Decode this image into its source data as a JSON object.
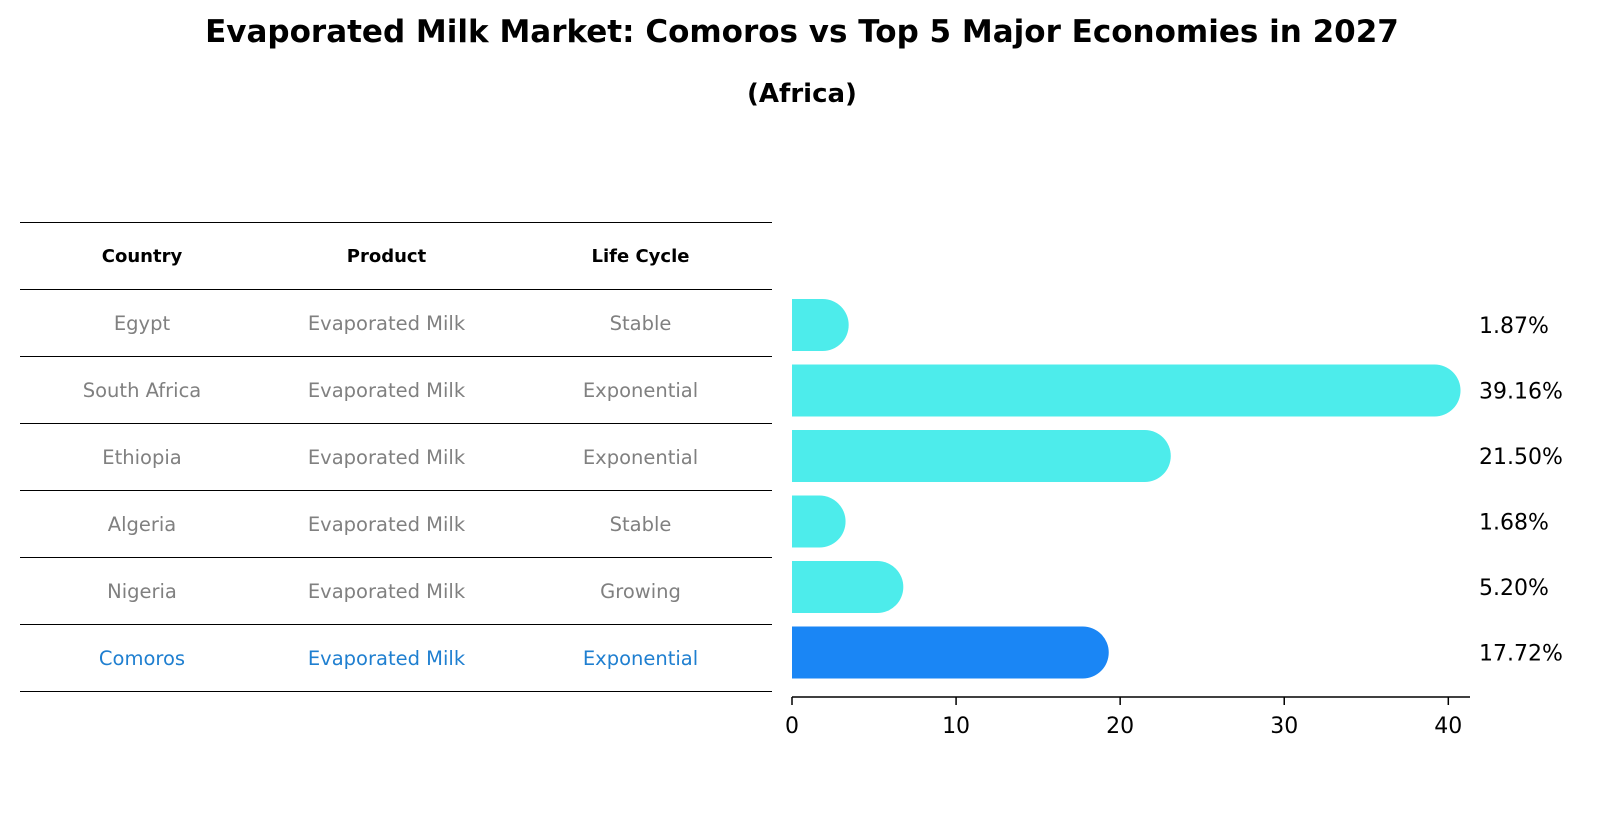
{
  "title": "Evaporated Milk Market: Comoros vs Top 5 Major Economies in 2027",
  "subtitle": "(Africa)",
  "table": {
    "headers": [
      "Country",
      "Product",
      "Life Cycle"
    ],
    "rows": [
      {
        "country": "Egypt",
        "product": "Evaporated Milk",
        "life_cycle": "Stable"
      },
      {
        "country": "South Africa",
        "product": "Evaporated Milk",
        "life_cycle": "Exponential"
      },
      {
        "country": "Ethiopia",
        "product": "Evaporated Milk",
        "life_cycle": "Exponential"
      },
      {
        "country": "Algeria",
        "product": "Evaporated Milk",
        "life_cycle": "Stable"
      },
      {
        "country": "Nigeria",
        "product": "Evaporated Milk",
        "life_cycle": "Growing"
      },
      {
        "country": "Comoros",
        "product": "Evaporated Milk",
        "life_cycle": "Exponential"
      }
    ]
  },
  "colors": {
    "bar": "#4deceb",
    "highlight_bar": "#1a86f5",
    "highlight_text": "#1f7fd0",
    "muted_text": "#808080"
  },
  "chart_data": {
    "type": "bar",
    "orientation": "horizontal",
    "categories": [
      "Egypt",
      "South Africa",
      "Ethiopia",
      "Algeria",
      "Nigeria",
      "Comoros"
    ],
    "values": [
      1.87,
      39.16,
      21.5,
      1.68,
      5.2,
      17.72
    ],
    "value_labels": [
      "1.87%",
      "39.16%",
      "21.50%",
      "1.68%",
      "5.20%",
      "17.72%"
    ],
    "highlight": "Comoros",
    "xlim": [
      0,
      41.2
    ],
    "xticks": [
      0,
      10,
      20,
      30,
      40
    ],
    "xtick_labels": [
      "0",
      "10",
      "20",
      "30",
      "40"
    ],
    "grid": false
  }
}
